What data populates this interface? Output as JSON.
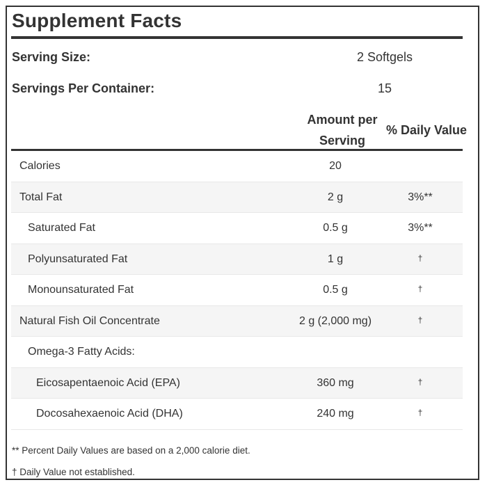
{
  "title": "Supplement Facts",
  "serving_size": {
    "label": "Serving Size:",
    "value": "2 Softgels"
  },
  "servings_per_container": {
    "label": "Servings Per Container:",
    "value": "15"
  },
  "columns": {
    "amount_line1": "Amount per",
    "amount_line2": "Serving",
    "daily_value": "% Daily Value"
  },
  "rows": [
    {
      "name": "Calories",
      "amount": "20",
      "dv": ""
    },
    {
      "name": "Total Fat",
      "amount": "2 g",
      "dv": "3%**"
    },
    {
      "name": "Saturated Fat",
      "amount": "0.5 g",
      "dv": "3%**"
    },
    {
      "name": "Polyunsaturated Fat",
      "amount": "1 g",
      "dv": "†"
    },
    {
      "name": "Monounsaturated Fat",
      "amount": "0.5 g",
      "dv": "†"
    },
    {
      "name": "Natural Fish Oil Concentrate",
      "amount": "2 g (2,000 mg)",
      "dv": "†"
    },
    {
      "name": "Omega-3 Fatty Acids:",
      "amount": "",
      "dv": ""
    },
    {
      "name": "Eicosapentaenoic Acid (EPA)",
      "amount": "360 mg",
      "dv": "†"
    },
    {
      "name": "Docosahexaenoic Acid (DHA)",
      "amount": "240 mg",
      "dv": "†"
    }
  ],
  "footnotes": {
    "percent": "** Percent Daily Values are based on a 2,000 calorie diet.",
    "dagger": "† Daily Value not established."
  },
  "colors": {
    "text": "#333333",
    "rule": "#333333",
    "row_shade": "#f5f5f5"
  }
}
